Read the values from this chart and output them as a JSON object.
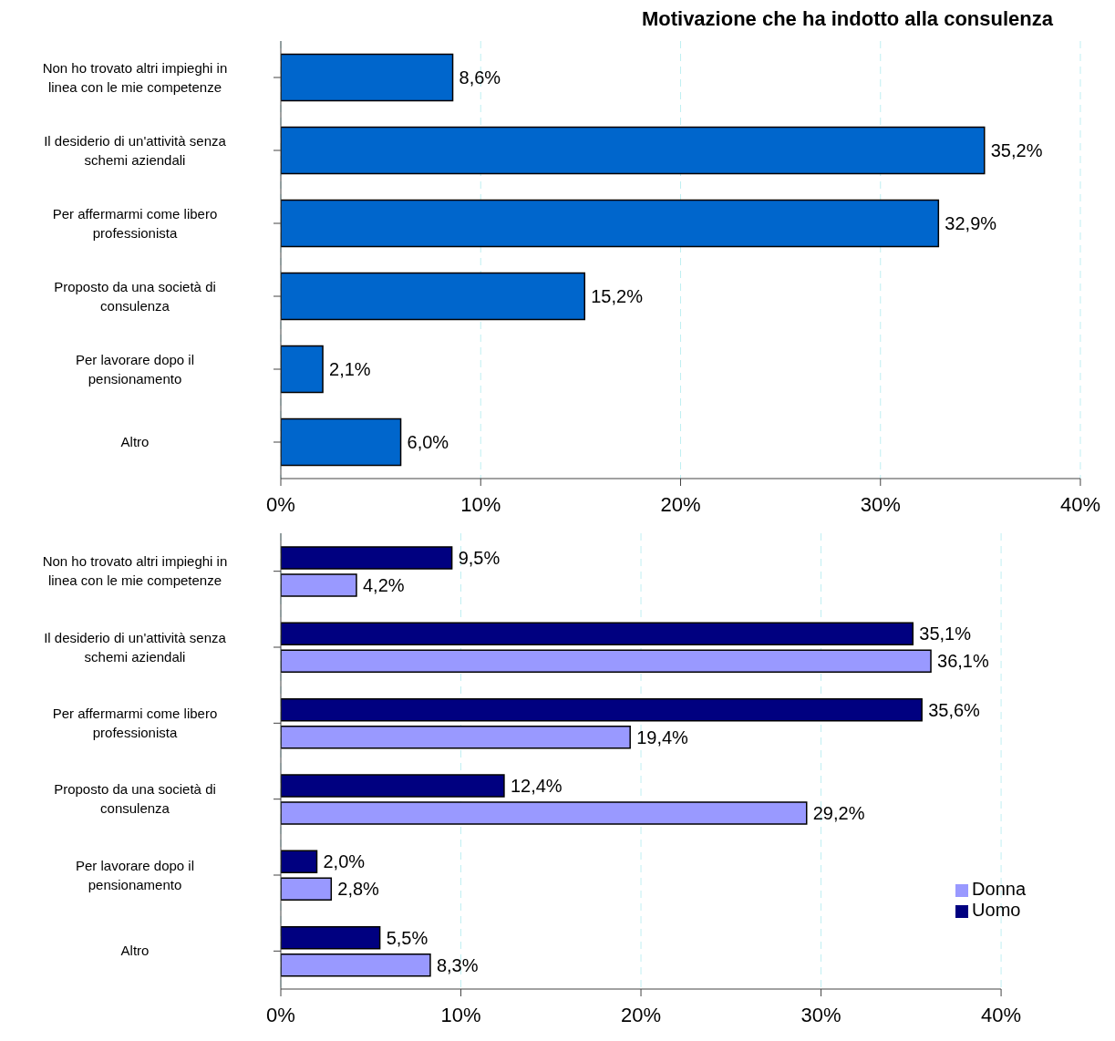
{
  "chart_data": [
    {
      "type": "bar",
      "orientation": "horizontal",
      "title": "Motivazione che ha indotto alla consulenza",
      "categories": [
        "Non ho trovato altri impieghi in linea con le mie competenze",
        "Il desiderio di un'attività senza schemi aziendali",
        "Per affermarmi come libero professionista",
        "Proposto da una società di consulenza",
        "Per lavorare dopo il pensionamento",
        "Altro"
      ],
      "values": [
        8.6,
        35.2,
        32.9,
        15.2,
        2.1,
        6.0
      ],
      "value_labels": [
        "8,6%",
        "35,2%",
        "32,9%",
        "15,2%",
        "2,1%",
        "6,0%"
      ],
      "color": "#0066cc",
      "xlim": [
        0,
        40
      ],
      "xticks": [
        {
          "value": 0,
          "label": "0%"
        },
        {
          "value": 10,
          "label": "10%"
        },
        {
          "value": 20,
          "label": "20%"
        },
        {
          "value": 30,
          "label": "30%"
        },
        {
          "value": 40,
          "label": "40%"
        }
      ],
      "grid": "x",
      "legend": false
    },
    {
      "type": "bar",
      "orientation": "horizontal",
      "categories": [
        "Non ho trovato altri impieghi in linea con le mie competenze",
        "Il desiderio di un'attività senza schemi aziendali",
        "Per affermarmi come libero professionista",
        "Proposto da una società di consulenza",
        "Per lavorare dopo il pensionamento",
        "Altro"
      ],
      "series": [
        {
          "name": "Uomo",
          "color": "#000080",
          "values": [
            9.5,
            35.1,
            35.6,
            12.4,
            2.0,
            5.5
          ],
          "value_labels": [
            "9,5%",
            "35,1%",
            "35,6%",
            "12,4%",
            "2,0%",
            "5,5%"
          ]
        },
        {
          "name": "Donna",
          "color": "#9999ff",
          "values": [
            4.2,
            36.1,
            19.4,
            29.2,
            2.8,
            8.3
          ],
          "value_labels": [
            "4,2%",
            "36,1%",
            "19,4%",
            "29,2%",
            "2,8%",
            "8,3%"
          ]
        }
      ],
      "xlim": [
        0,
        40
      ],
      "xticks": [
        {
          "value": 0,
          "label": "0%"
        },
        {
          "value": 10,
          "label": "10%"
        },
        {
          "value": 20,
          "label": "20%"
        },
        {
          "value": 30,
          "label": "30%"
        },
        {
          "value": 40,
          "label": "40%"
        }
      ],
      "grid": "x",
      "legend": "bottom right"
    }
  ]
}
